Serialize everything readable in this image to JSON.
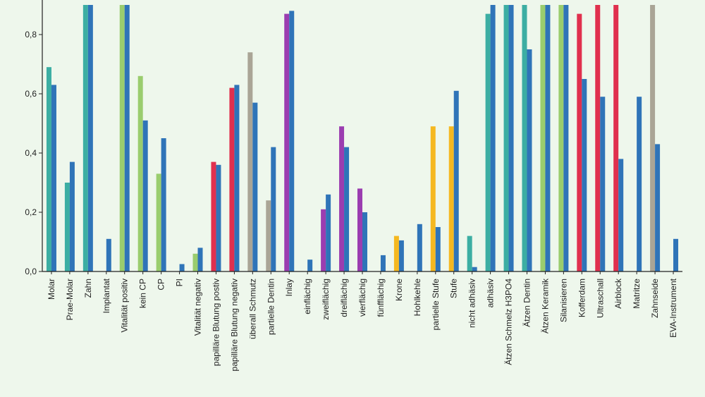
{
  "chart_data": {
    "type": "bar",
    "title": "",
    "xlabel": "",
    "ylabel": "",
    "ylim": [
      0,
      0.9
    ],
    "yticks": [
      "0,0",
      "0,2",
      "0,4",
      "0,6",
      "0,8"
    ],
    "ytick_values": [
      0,
      0.2,
      0.4,
      0.6,
      0.8
    ],
    "grid": false,
    "legend": "none",
    "categories": [
      "Molar",
      "Prae-Molar",
      "Zahn",
      "Implantat",
      "Vitalität positiv",
      "kein CP",
      "CP",
      "PI",
      "Vitalität negativ",
      "papilläre Blutung postiv",
      "papilläre Blutung negativ",
      "überall Schmutz",
      "partielle Dentin",
      "Inlay",
      "einflächig",
      "zweiflächig",
      "dreiflächig",
      "vierflächig",
      "fünfflächig",
      "Krone",
      "Hohlkehle",
      "partielle Stufe",
      "Stufe",
      "nicht adhäsiv",
      "adhäsiv",
      "Ätzen Schmelz H3PO4",
      "Ätzen Dentin",
      "Ätzen Keramik",
      "Silanisieren",
      "Kofferdam",
      "Ultraschall",
      "Airblock",
      "Matritze",
      "Zahnseide",
      "EVA-Instrument"
    ],
    "series": [
      {
        "color": "#3caea3",
        "values": [
          0.69,
          0.3,
          0.9,
          null,
          0.9,
          0.66,
          0.33,
          null,
          0.06,
          0.37,
          0.62,
          0.74,
          0.24,
          0.87,
          null,
          0.21,
          0.49,
          0.28,
          null,
          0.12,
          null,
          0.49,
          0.49,
          0.12,
          0.87,
          0.9,
          0.9,
          0.9,
          0.9,
          0.87,
          0.9,
          0.9,
          null,
          0.9,
          null
        ],
        "colors": [
          "#3caea3",
          "#3caea3",
          "#3caea3",
          "#3caea3",
          "#9acd6e",
          "#9acd6e",
          "#9acd6e",
          "#9acd6e",
          "#9acd6e",
          "#e0304e",
          "#e0304e",
          "#aaa596",
          "#aaa596",
          "#9b3db0",
          "#9b3db0",
          "#9b3db0",
          "#9b3db0",
          "#9b3db0",
          "#9b3db0",
          "#f5b820",
          "#f5b820",
          "#f5b820",
          "#f5b820",
          "#3caea3",
          "#3caea3",
          "#3caea3",
          "#3caea3",
          "#9acd6e",
          "#9acd6e",
          "#e0304e",
          "#e0304e",
          "#e0304e",
          "#aaa596",
          "#aaa596",
          "#aaa596"
        ]
      },
      {
        "color": "#2f74b8",
        "values": [
          0.63,
          0.37,
          0.9,
          0.11,
          0.9,
          0.51,
          0.45,
          0.025,
          0.08,
          0.36,
          0.63,
          0.57,
          0.42,
          0.88,
          0.04,
          0.26,
          0.42,
          0.2,
          0.055,
          0.105,
          0.16,
          0.15,
          0.61,
          0.015,
          0.9,
          0.9,
          0.75,
          0.9,
          0.9,
          0.65,
          0.59,
          0.38,
          0.59,
          0.43,
          0.11
        ]
      }
    ]
  }
}
